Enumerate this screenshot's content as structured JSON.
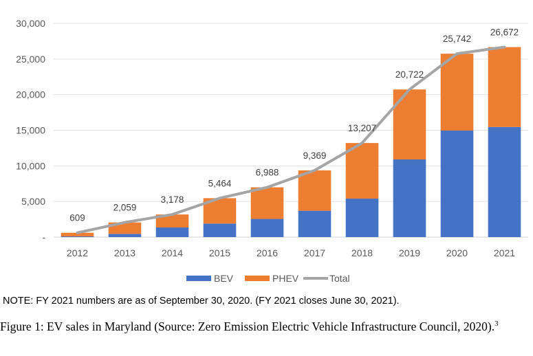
{
  "chart_data": {
    "type": "bar",
    "stacked": true,
    "categories": [
      "2012",
      "2013",
      "2014",
      "2015",
      "2016",
      "2017",
      "2018",
      "2019",
      "2020",
      "2021"
    ],
    "series": [
      {
        "name": "BEV",
        "color": "#4472C4",
        "values": [
          100,
          450,
          1350,
          1900,
          2550,
          3700,
          5400,
          10900,
          14950,
          15450
        ]
      },
      {
        "name": "PHEV",
        "color": "#ED7D31",
        "values": [
          509,
          1609,
          1828,
          3564,
          4438,
          5669,
          7807,
          9822,
          10792,
          11222
        ]
      },
      {
        "name": "Total",
        "color": "#A5A5A5",
        "type": "line",
        "values": [
          609,
          2059,
          3178,
          5464,
          6988,
          9369,
          13207,
          20722,
          25742,
          26672
        ]
      }
    ],
    "data_labels": [
      "609",
      "2,059",
      "3,178",
      "5,464",
      "6,988",
      "9,369",
      "13,207",
      "20,722",
      "25,742",
      "26,672"
    ],
    "y_ticks": [
      0,
      5000,
      10000,
      15000,
      20000,
      25000,
      30000
    ],
    "y_tick_labels": [
      "-",
      "5,000",
      "10,000",
      "15,000",
      "20,000",
      "25,000",
      "30,000"
    ],
    "ylim": [
      0,
      30000
    ],
    "grid": true,
    "legend": "bottom",
    "title": "",
    "xlabel": "",
    "ylabel": ""
  },
  "note": "NOTE: FY 2021 numbers are as of September 30, 2020. (FY 2021 closes June 30, 2021).",
  "caption": {
    "text": "Figure 1: EV sales in Maryland (Source: Zero Emission Electric Vehicle Infrastructure Council, 2020).",
    "footnote": "3"
  }
}
